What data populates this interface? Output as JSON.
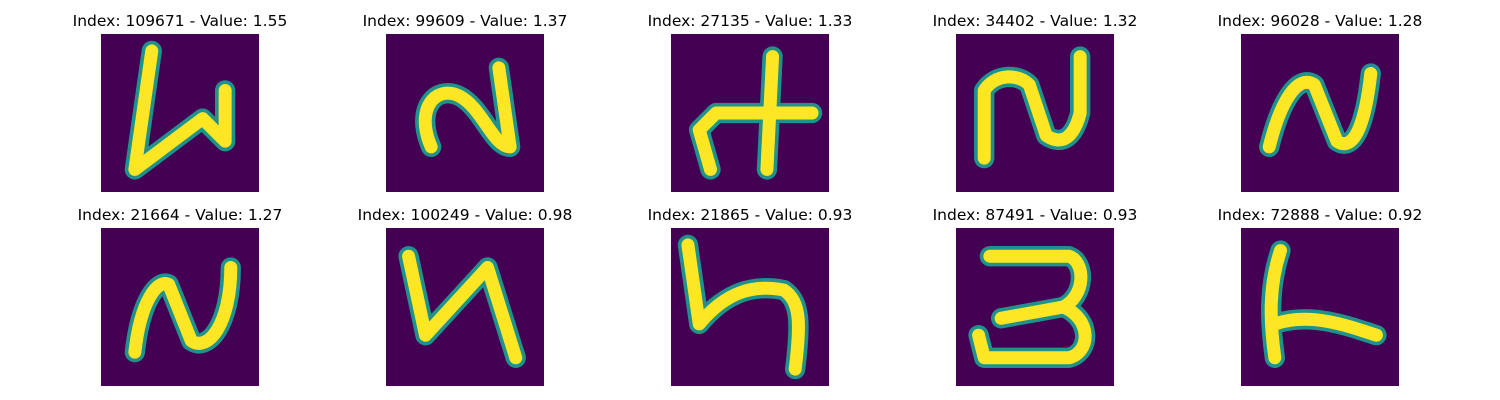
{
  "colors": {
    "background": "#440154",
    "teal": "#21918c",
    "green": "#5ec962",
    "yellow": "#fde725"
  },
  "panels": [
    {
      "title": "Index: 109671 - Value: 1.55",
      "glyph": "stroke-digit-image"
    },
    {
      "title": "Index: 99609 - Value: 1.37",
      "glyph": "stroke-digit-image"
    },
    {
      "title": "Index: 27135 - Value: 1.33",
      "glyph": "stroke-digit-image"
    },
    {
      "title": "Index: 34402 - Value: 1.32",
      "glyph": "stroke-digit-image"
    },
    {
      "title": "Index: 96028 - Value: 1.28",
      "glyph": "stroke-digit-image"
    },
    {
      "title": "Index: 21664 - Value: 1.27",
      "glyph": "stroke-digit-image"
    },
    {
      "title": "Index: 100249 - Value: 0.98",
      "glyph": "stroke-digit-image"
    },
    {
      "title": "Index: 21865 - Value: 0.93",
      "glyph": "stroke-digit-image"
    },
    {
      "title": "Index: 87491 - Value: 0.93",
      "glyph": "stroke-digit-image"
    },
    {
      "title": "Index: 72888 - Value: 0.92",
      "glyph": "stroke-digit-image"
    }
  ]
}
